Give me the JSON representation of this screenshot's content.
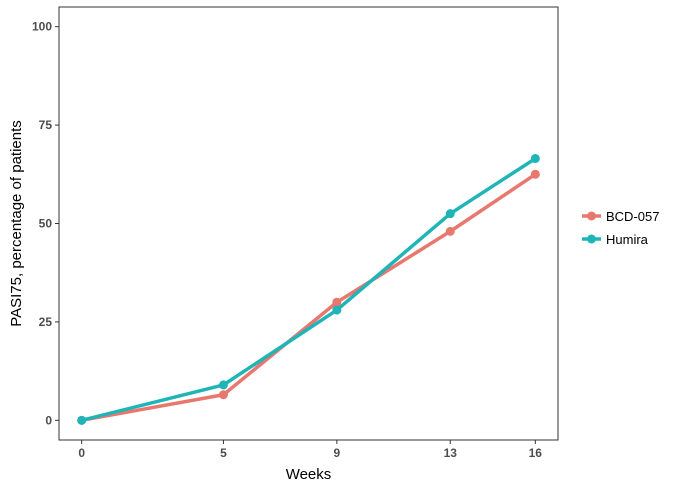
{
  "chart_data": {
    "type": "line",
    "xlabel": "Weeks",
    "ylabel": "PASI75, percentage of patients",
    "x": [
      0,
      5,
      9,
      13,
      16
    ],
    "xticks": [
      "0",
      "5",
      "9",
      "13",
      "16"
    ],
    "yticks": [
      "0",
      "25",
      "50",
      "75",
      "100"
    ],
    "xlim": [
      -0.8,
      16.8
    ],
    "ylim": [
      -5,
      105
    ],
    "grid": false,
    "legend_position": "right",
    "series": [
      {
        "name": "BCD-057",
        "color": "#E8786E",
        "values": [
          0,
          6.5,
          30,
          48,
          62.5
        ]
      },
      {
        "name": "Humira",
        "color": "#1FB5B8",
        "values": [
          0,
          9,
          28,
          52.5,
          66.5
        ]
      }
    ]
  }
}
